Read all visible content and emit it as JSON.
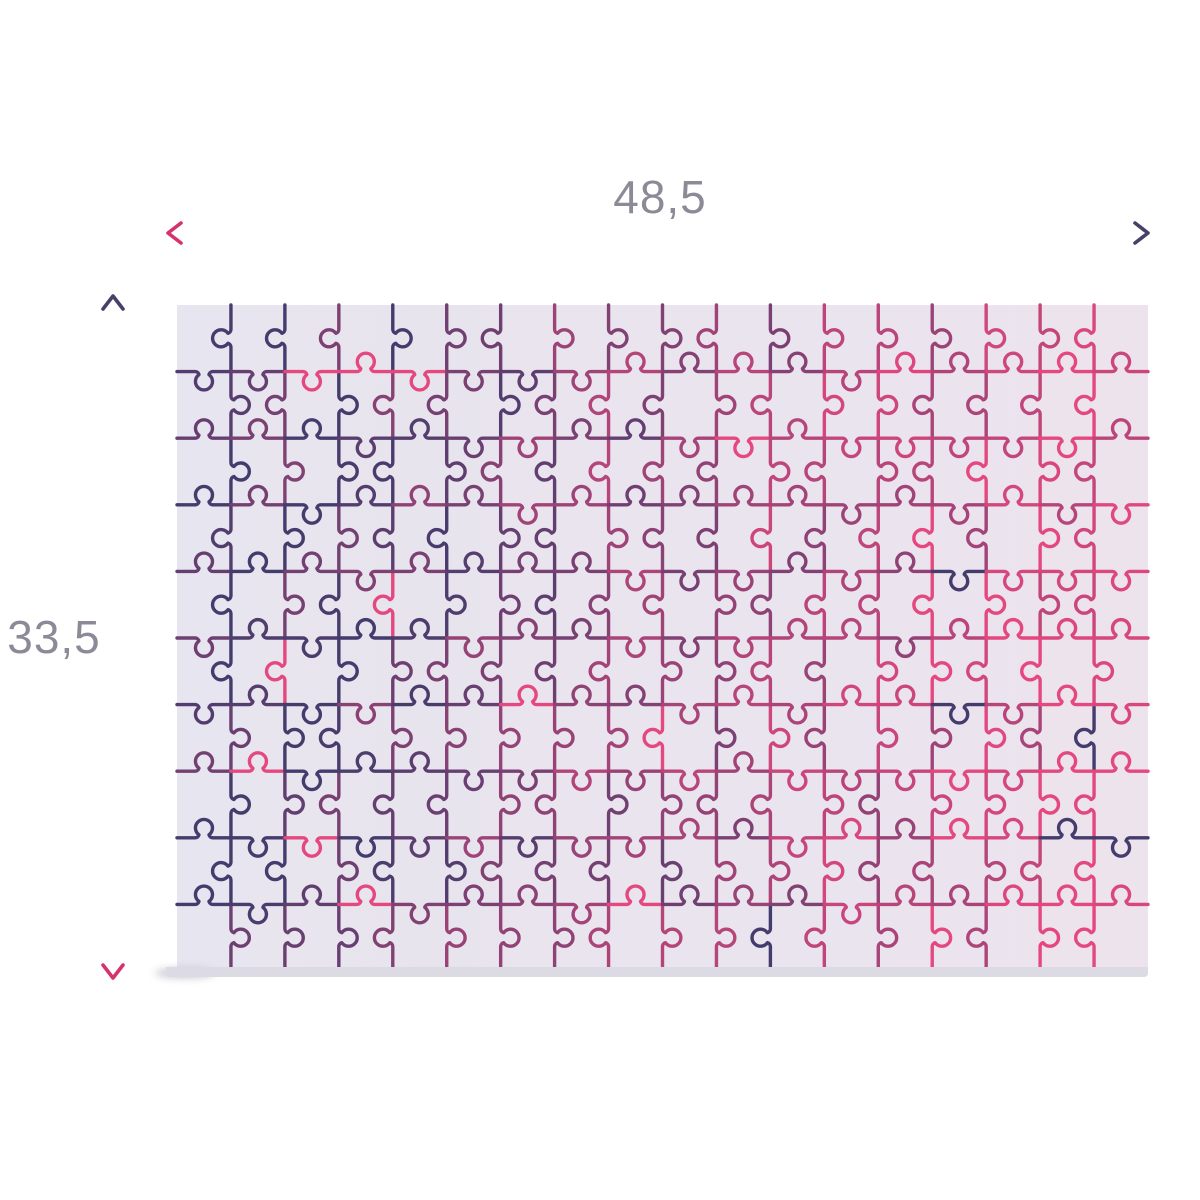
{
  "dimensions": {
    "width_label": "48,5",
    "height_label": "33,5"
  },
  "arrows": {
    "pink": "#d5336e",
    "dark": "#474069",
    "stroke_width": 3.6
  },
  "labels": {
    "color": "#8d8a98"
  },
  "puzzle": {
    "cols": 18,
    "rows": 10,
    "pieces": 180,
    "line_dark": "#433c6c",
    "line_pink": "#e4487f",
    "board_bg_left": "#e7e5ef",
    "board_bg_right": "#ece3ed",
    "board_edge": "#dcdae2",
    "stroke_width": 3.4,
    "noise": 0.55,
    "flip_chance": 0.055
  }
}
